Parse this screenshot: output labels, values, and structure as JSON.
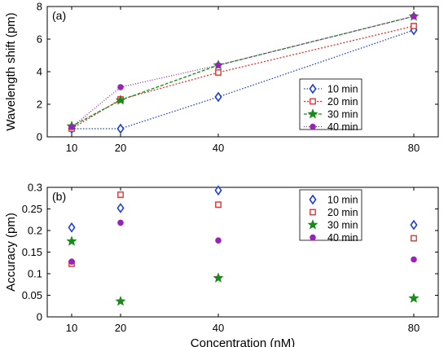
{
  "chart_data": [
    {
      "type": "line",
      "panel_label": "(a)",
      "xlabel": "",
      "ylabel": "Wavelength shift (pm)",
      "x": [
        10,
        20,
        40,
        80
      ],
      "xticks": [
        "10",
        "20",
        "40",
        "80"
      ],
      "yticks": [
        "0",
        "2",
        "4",
        "6",
        "8"
      ],
      "xlim": [
        5,
        85
      ],
      "ylim": [
        0,
        8
      ],
      "legend_position": "lower-right",
      "series": [
        {
          "name": "10 min",
          "values": [
            0.5,
            0.5,
            2.45,
            6.55
          ],
          "color": "#1f3fd6",
          "marker": "diamond"
        },
        {
          "name": "20 min",
          "values": [
            0.5,
            2.3,
            3.95,
            6.8
          ],
          "color": "#e83030",
          "marker": "square"
        },
        {
          "name": "30 min",
          "values": [
            0.65,
            2.25,
            4.4,
            7.4
          ],
          "color": "#1a8a1a",
          "marker": "star"
        },
        {
          "name": "40 min",
          "values": [
            0.6,
            3.05,
            4.4,
            7.4
          ],
          "color": "#9b22b8",
          "marker": "circle"
        }
      ]
    },
    {
      "type": "scatter",
      "panel_label": "(b)",
      "xlabel": "Concentration (nM)",
      "ylabel": "Accuracy (pm)",
      "x": [
        10,
        20,
        40,
        80
      ],
      "xticks": [
        "10",
        "20",
        "40",
        "80"
      ],
      "yticks": [
        "0",
        "0.05",
        "0.1",
        "0.15",
        "0.2",
        "0.25",
        "0.3"
      ],
      "xlim": [
        5,
        85
      ],
      "ylim": [
        0,
        0.3
      ],
      "legend_position": "top-right",
      "series": [
        {
          "name": "10 min",
          "values": [
            0.207,
            0.252,
            0.293,
            0.213
          ],
          "color": "#1f3fd6",
          "marker": "diamond"
        },
        {
          "name": "20 min",
          "values": [
            0.123,
            0.283,
            0.26,
            0.182
          ],
          "color": "#e83030",
          "marker": "square"
        },
        {
          "name": "30 min",
          "values": [
            0.175,
            0.036,
            0.09,
            0.043
          ],
          "color": "#1a8a1a",
          "marker": "star"
        },
        {
          "name": "40 min",
          "values": [
            0.128,
            0.218,
            0.177,
            0.133
          ],
          "color": "#9b22b8",
          "marker": "circle"
        }
      ]
    }
  ]
}
